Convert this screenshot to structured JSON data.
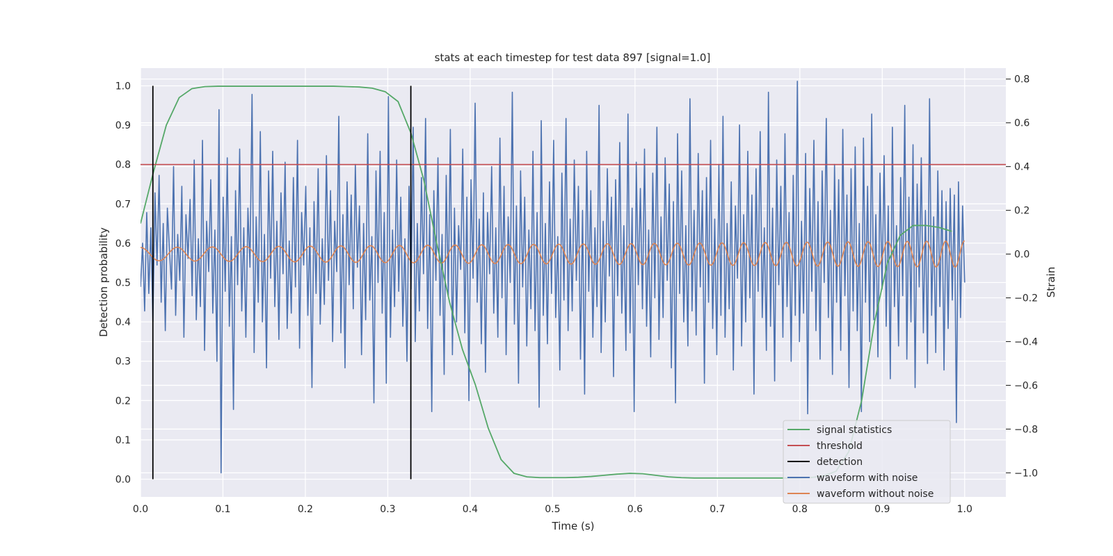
{
  "chart_data": {
    "type": "line",
    "title": "stats at each timestep for test data 897 [signal=1.0]",
    "xlabel": "Time (s)",
    "ylabel": "Detection probability",
    "y2label": "Strain",
    "xlim": [
      0.0,
      1.05
    ],
    "ylim": [
      -0.045,
      1.045
    ],
    "y2lim": [
      -1.11,
      0.85
    ],
    "x_ticks": [
      0.0,
      0.1,
      0.2,
      0.3,
      0.4,
      0.5,
      0.6,
      0.7,
      0.8,
      0.9,
      1.0
    ],
    "y_ticks": [
      0.0,
      0.1,
      0.2,
      0.3,
      0.4,
      0.5,
      0.6,
      0.7,
      0.8,
      0.9,
      1.0
    ],
    "y2_ticks": [
      -1.0,
      -0.8,
      -0.6,
      -0.4,
      -0.2,
      0.0,
      0.2,
      0.4,
      0.6,
      0.8
    ],
    "x_tick_labels": [
      "0.0",
      "0.1",
      "0.2",
      "0.3",
      "0.4",
      "0.5",
      "0.6",
      "0.7",
      "0.8",
      "0.9",
      "1.0"
    ],
    "y_tick_labels": [
      "0.0",
      "0.1",
      "0.2",
      "0.3",
      "0.4",
      "0.5",
      "0.6",
      "0.7",
      "0.8",
      "0.9",
      "1.0"
    ],
    "y2_tick_labels": [
      "−1.0",
      "−0.8",
      "−0.6",
      "−0.4",
      "−0.2",
      "0.0",
      "0.2",
      "0.4",
      "0.6",
      "0.8"
    ],
    "grid": true,
    "legend_position": "bottom-right",
    "colors": {
      "background": "#eaeaf2",
      "grid": "#ffffff",
      "signal_statistics": "#55a868",
      "threshold": "#c44e52",
      "detection": "#000000",
      "waveform_with_noise": "#4c72b0",
      "waveform_without_noise": "#dd8452"
    },
    "series": [
      {
        "name": "signal statistics",
        "axis": "left",
        "x": [
          0.0,
          0.0156,
          0.0313,
          0.0469,
          0.0625,
          0.0781,
          0.0938,
          0.1094,
          0.125,
          0.1406,
          0.1563,
          0.1719,
          0.1875,
          0.2031,
          0.2188,
          0.2344,
          0.25,
          0.2656,
          0.2813,
          0.2969,
          0.3125,
          0.3281,
          0.3438,
          0.3594,
          0.375,
          0.3906,
          0.4063,
          0.4219,
          0.4375,
          0.4531,
          0.4688,
          0.4844,
          0.5,
          0.5156,
          0.5313,
          0.5469,
          0.5625,
          0.5781,
          0.5938,
          0.6094,
          0.625,
          0.6406,
          0.6563,
          0.6719,
          0.6875,
          0.7031,
          0.7188,
          0.7344,
          0.75,
          0.7656,
          0.7813,
          0.7969,
          0.8125,
          0.8281,
          0.8438,
          0.8594,
          0.875,
          0.8906,
          0.9063,
          0.9219,
          0.9375,
          0.9531,
          0.9688,
          0.9844
        ],
        "values": [
          0.65,
          0.78,
          0.9,
          0.97,
          0.993,
          0.998,
          0.999,
          0.999,
          0.999,
          0.999,
          0.999,
          0.999,
          0.999,
          0.999,
          0.999,
          0.999,
          0.998,
          0.997,
          0.994,
          0.985,
          0.96,
          0.88,
          0.76,
          0.6,
          0.45,
          0.33,
          0.24,
          0.13,
          0.05,
          0.015,
          0.006,
          0.004,
          0.004,
          0.004,
          0.005,
          0.007,
          0.01,
          0.013,
          0.015,
          0.014,
          0.01,
          0.006,
          0.004,
          0.003,
          0.003,
          0.003,
          0.003,
          0.003,
          0.003,
          0.003,
          0.003,
          0.003,
          0.004,
          0.008,
          0.02,
          0.07,
          0.2,
          0.4,
          0.55,
          0.62,
          0.645,
          0.645,
          0.64,
          0.63
        ]
      },
      {
        "name": "threshold",
        "axis": "left",
        "x": [
          0.0,
          1.05
        ],
        "values": [
          0.8,
          0.8
        ]
      },
      {
        "name": "detection",
        "axis": "left",
        "segments": [
          {
            "x": 0.015,
            "y": [
              0.0,
              1.0
            ]
          },
          {
            "x": 0.328,
            "y": [
              0.0,
              1.0
            ]
          }
        ]
      },
      {
        "name": "waveform with noise",
        "axis": "right",
        "x_range": [
          0.0,
          1.0
        ],
        "samples": 420,
        "values": [
          -0.15,
          0.05,
          -0.26,
          0.19,
          -0.18,
          0.12,
          -0.31,
          0.28,
          -0.05,
          0.36,
          -0.22,
          0.14,
          -0.35,
          0.21,
          0.02,
          -0.16,
          0.4,
          -0.28,
          0.09,
          -0.12,
          0.31,
          -0.38,
          0.18,
          -0.02,
          0.25,
          -0.19,
          0.43,
          -0.3,
          0.07,
          -0.24,
          0.52,
          -0.44,
          0.15,
          -0.08,
          0.34,
          -0.27,
          0.11,
          -0.49,
          0.66,
          -1.0,
          0.26,
          -0.17,
          0.44,
          -0.33,
          0.08,
          -0.71,
          0.29,
          -0.14,
          0.48,
          -0.26,
          0.12,
          -0.38,
          0.21,
          -0.06,
          0.73,
          -0.45,
          0.17,
          -0.22,
          0.56,
          -0.31,
          0.09,
          -0.52,
          0.38,
          -0.11,
          0.47,
          -0.24,
          0.15,
          -0.39,
          0.28,
          -0.09,
          0.42,
          -0.34,
          0.06,
          -0.27,
          0.35,
          -0.15,
          0.52,
          -0.43,
          0.19,
          -0.05,
          0.31,
          -0.28,
          0.12,
          -0.61,
          0.24,
          -0.18,
          0.39,
          -0.32,
          0.07,
          -0.23,
          0.45,
          -0.12,
          0.29,
          -0.4,
          0.15,
          -0.08,
          0.63,
          -0.36,
          0.18,
          -0.52,
          0.33,
          -0.14,
          0.27,
          -0.25,
          0.41,
          -0.06,
          0.22,
          -0.46,
          0.14,
          -0.3,
          0.55,
          -0.21,
          0.08,
          -0.68,
          0.38,
          -0.13,
          0.47,
          -0.27,
          0.19,
          -0.59,
          0.72,
          -0.38,
          0.11,
          -0.24,
          0.43,
          -0.17,
          0.26,
          -0.33,
          0.07,
          -0.49,
          0.31,
          -0.16,
          0.58,
          -0.4,
          0.14,
          -0.26,
          0.35,
          -0.09,
          0.62,
          -0.34,
          0.18,
          -0.72,
          0.29,
          -0.12,
          0.44,
          -0.28,
          0.09,
          -0.55,
          0.36,
          -0.19,
          0.57,
          -0.46,
          0.21,
          -0.31,
          0.13,
          -0.07,
          0.48,
          -0.36,
          0.26,
          -0.67,
          0.34,
          -0.11,
          0.69,
          -0.22,
          0.16,
          -0.41,
          0.28,
          -0.54,
          0.19,
          -0.09,
          0.4,
          -0.27,
          0.12,
          -0.38,
          0.53,
          -0.2,
          0.31,
          -0.46,
          0.17,
          -0.13,
          0.74,
          -0.32,
          0.22,
          -0.59,
          0.38,
          -0.15,
          0.26,
          -0.42,
          0.11,
          -0.25,
          0.47,
          -0.35,
          0.19,
          -0.7,
          0.61,
          -0.28,
          0.14,
          -0.41,
          0.33,
          -0.18,
          0.52,
          -0.29,
          0.08,
          -0.53,
          0.37,
          -0.21,
          0.62,
          -0.35,
          0.16,
          -0.26,
          0.43,
          -0.12,
          0.31,
          -0.48,
          0.2,
          -0.64,
          0.47,
          -0.17,
          0.29,
          -0.38,
          0.12,
          -0.24,
          0.68,
          -0.45,
          0.15,
          -0.31,
          0.39,
          -0.1,
          0.26,
          -0.56,
          0.34,
          -0.19,
          0.51,
          -0.27,
          0.13,
          -0.44,
          0.64,
          -0.36,
          0.21,
          -0.72,
          0.42,
          -0.14,
          0.3,
          -0.25,
          0.48,
          -0.33,
          0.11,
          -0.47,
          0.37,
          -0.2,
          0.58,
          -0.39,
          0.17,
          -0.29,
          0.44,
          -0.12,
          0.32,
          -0.52,
          0.24,
          -0.68,
          0.55,
          -0.18,
          0.38,
          -0.31,
          0.13,
          -0.42,
          0.71,
          -0.26,
          0.2,
          -0.37,
          0.46,
          -0.15,
          0.29,
          -0.59,
          0.35,
          -0.22,
          0.52,
          -0.34,
          0.16,
          -0.46,
          0.41,
          -0.28,
          0.63,
          -0.38,
          0.14,
          -0.25,
          0.33,
          -0.53,
          0.22,
          -0.11,
          0.59,
          -0.42,
          0.18,
          -0.31,
          0.47,
          -0.2,
          0.27,
          -0.64,
          0.39,
          -0.17,
          0.56,
          -0.29,
          0.12,
          -0.44,
          0.74,
          -0.33,
          0.21,
          -0.58,
          0.43,
          -0.14,
          0.31,
          -0.38,
          0.55,
          -0.24,
          0.19,
          -0.49,
          0.36,
          -0.28,
          0.79,
          -0.4,
          0.15,
          -0.27,
          0.46,
          -0.73,
          0.3,
          -0.17,
          0.52,
          -0.35,
          0.24,
          -0.48,
          0.38,
          -0.13,
          0.62,
          -0.29,
          0.2,
          -0.55,
          0.41,
          -0.22,
          0.34,
          -0.44,
          0.57,
          -0.19,
          0.27,
          -0.61,
          0.39,
          -0.26,
          0.49,
          -0.35,
          0.14,
          -0.72,
          0.53,
          -0.22,
          0.31,
          -0.4,
          0.64,
          -0.3,
          0.18,
          -0.47,
          0.37,
          -0.16,
          0.45,
          -0.33,
          0.22,
          -0.57,
          0.58,
          -0.24,
          0.13,
          -0.42,
          0.35,
          -0.19,
          0.68,
          -0.48,
          0.26,
          -0.31,
          0.5,
          -0.61,
          0.32,
          -0.15,
          0.44,
          -0.36,
          0.2,
          -0.5,
          0.71,
          -0.28,
          0.17,
          -0.45,
          0.38,
          -0.24,
          0.29,
          -0.53,
          0.24,
          -0.34,
          0.3,
          -0.21,
          0.27,
          -0.77,
          0.33,
          -0.29,
          0.22,
          -0.13
        ]
      },
      {
        "name": "waveform without noise",
        "axis": "right",
        "x_range": [
          0.0,
          1.0
        ],
        "model": "chirp",
        "f0_hz": 22.0,
        "f1_hz": 44.0,
        "amp0": 0.03,
        "amp1": 0.06
      }
    ]
  }
}
